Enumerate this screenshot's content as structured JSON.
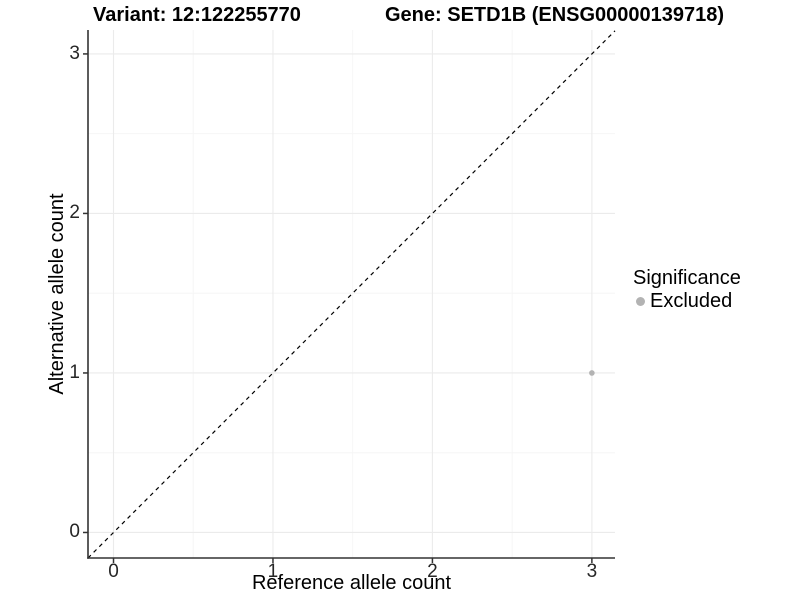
{
  "chart_data": {
    "type": "scatter",
    "title_variant": "Variant: 12:122255770",
    "title_gene": "Gene: SETD1B (ENSG00000139718)",
    "xlabel": "Reference allele count",
    "ylabel": "Alternative allele count",
    "x_ticks": [
      0,
      1,
      2,
      3
    ],
    "y_ticks": [
      0,
      1,
      2,
      3
    ],
    "minor_gridlines": [
      0.5,
      1.5,
      2.5
    ],
    "xlim": [
      -0.16,
      3.145
    ],
    "ylim": [
      -0.16,
      3.15
    ],
    "grid": true,
    "series": [
      {
        "name": "Excluded",
        "color": "#b3b3b3",
        "marker_radius": 2.8,
        "points": [
          {
            "x": 3,
            "y": 1
          }
        ]
      }
    ],
    "reference_line": {
      "slope": 1,
      "intercept": 0,
      "style": "dashed",
      "color": "#000000"
    },
    "legend": {
      "title": "Significance",
      "position": "right",
      "items": [
        {
          "label": "Excluded",
          "color": "#b3b3b3"
        }
      ]
    },
    "colors": {
      "grid_major": "#ebebeb",
      "grid_minor": "#f6f6f6",
      "axis_line": "#333333",
      "tick_text": "#262626"
    }
  }
}
